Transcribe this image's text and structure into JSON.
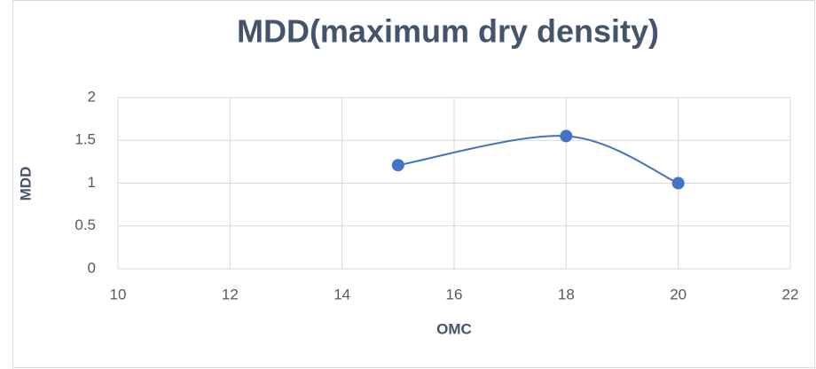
{
  "chart_data": {
    "type": "scatter",
    "title": "MDD(maximum dry density)",
    "x_label": "OMC",
    "y_label": "MDD",
    "x": [
      15,
      18,
      20
    ],
    "values": [
      1.21,
      1.55,
      1.0
    ],
    "color": "#4472c4",
    "smooth": true,
    "xlim": [
      10,
      22
    ],
    "xticks": [
      10,
      12,
      14,
      16,
      18,
      20,
      22
    ],
    "ylim": [
      0,
      2
    ],
    "yticks": [
      0,
      0.5,
      1,
      1.5,
      2
    ],
    "grid": true
  }
}
